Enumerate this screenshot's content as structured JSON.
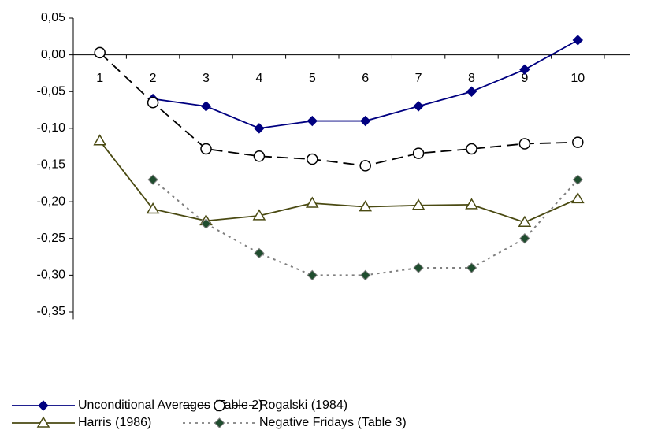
{
  "chart_data": {
    "type": "line",
    "categories": [
      "1",
      "2",
      "3",
      "4",
      "5",
      "6",
      "7",
      "8",
      "9",
      "10"
    ],
    "ylim": [
      -0.36,
      0.05
    ],
    "yticks": [
      {
        "value": 0.05,
        "label": "0,05"
      },
      {
        "value": 0,
        "label": "0,00"
      },
      {
        "value": -0.05,
        "label": "-0,05"
      },
      {
        "value": -0.1,
        "label": "-0,10"
      },
      {
        "value": -0.15,
        "label": "-0,15"
      },
      {
        "value": -0.2,
        "label": "-0,20"
      },
      {
        "value": -0.25,
        "label": "-0,25"
      },
      {
        "value": -0.3,
        "label": "-0,30"
      },
      {
        "value": -0.35,
        "label": "-0,35"
      }
    ],
    "grid": false,
    "series": [
      {
        "name": "Unconditional Averages (Table 2)",
        "color": "#000080",
        "marker": "diamond",
        "line_style": "solid",
        "values": [
          null,
          -0.06,
          -0.07,
          -0.1,
          -0.09,
          -0.09,
          -0.07,
          -0.05,
          -0.02,
          0.02
        ]
      },
      {
        "name": "Rogalski (1984)",
        "color": "#000000",
        "marker": "circle",
        "line_style": "dashed",
        "values": [
          0.003,
          -0.065,
          -0.128,
          -0.138,
          -0.142,
          -0.151,
          -0.134,
          -0.128,
          -0.121,
          -0.119
        ]
      },
      {
        "name": "Harris (1986)",
        "color": "#4a4a12",
        "marker": "triangle",
        "line_style": "solid",
        "values": [
          -0.117,
          -0.21,
          -0.226,
          -0.219,
          -0.202,
          -0.207,
          -0.205,
          -0.204,
          -0.228,
          -0.196
        ]
      },
      {
        "name": "Negative Fridays (Table 3)",
        "color": "#808080",
        "marker_color": "#1f4d2e",
        "marker": "diamond",
        "line_style": "dotted",
        "values": [
          null,
          -0.17,
          -0.23,
          -0.27,
          -0.3,
          -0.3,
          -0.29,
          -0.29,
          -0.25,
          -0.17
        ]
      }
    ]
  }
}
